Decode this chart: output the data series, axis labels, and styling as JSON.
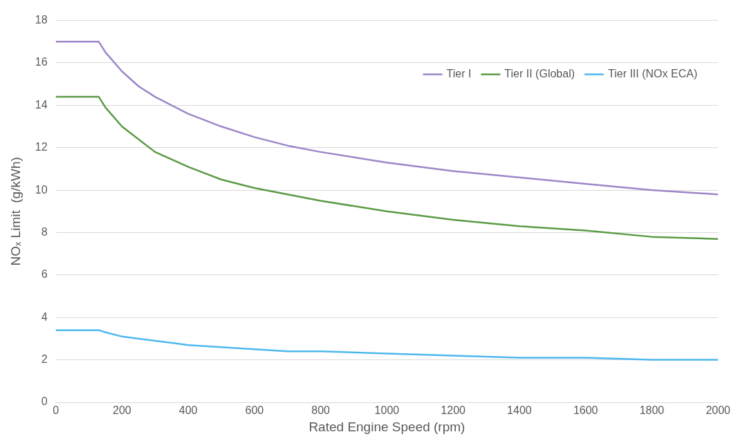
{
  "chart_data": {
    "type": "line",
    "xlabel": "Rated Engine Speed (rpm)",
    "ylabel": "NOₓ Limit  (g/kWh)",
    "xlim": [
      0,
      2000
    ],
    "xticks": [
      0,
      200,
      400,
      600,
      800,
      1000,
      1200,
      1400,
      1600,
      1800,
      2000
    ],
    "ylim": [
      0,
      18
    ],
    "yticks": [
      0,
      2,
      4,
      6,
      8,
      10,
      12,
      14,
      16,
      18
    ],
    "x": [
      0,
      130,
      150,
      200,
      250,
      300,
      400,
      500,
      600,
      700,
      800,
      1000,
      1200,
      1400,
      1600,
      1800,
      2000
    ],
    "series": [
      {
        "name": "Tier I",
        "color": "#9e86c8",
        "values": [
          17.0,
          17.0,
          16.5,
          15.6,
          14.9,
          14.4,
          13.6,
          13.0,
          12.5,
          12.1,
          11.8,
          11.3,
          10.9,
          10.6,
          10.3,
          10.0,
          9.8
        ]
      },
      {
        "name": "Tier II (Global)",
        "color": "#5b9a45",
        "values": [
          14.4,
          14.4,
          13.9,
          13.0,
          12.4,
          11.8,
          11.1,
          10.5,
          10.1,
          9.8,
          9.5,
          9.0,
          8.6,
          8.3,
          8.1,
          7.8,
          7.7
        ]
      },
      {
        "name": "Tier III (NOx ECA)",
        "color": "#4db8f0",
        "values": [
          3.4,
          3.4,
          3.3,
          3.1,
          3.0,
          2.9,
          2.7,
          2.6,
          2.5,
          2.4,
          2.4,
          2.3,
          2.2,
          2.1,
          2.1,
          2.0,
          2.0
        ]
      }
    ],
    "grid": "y",
    "legend": "top right",
    "marker": "none",
    "line_style": "solid"
  }
}
